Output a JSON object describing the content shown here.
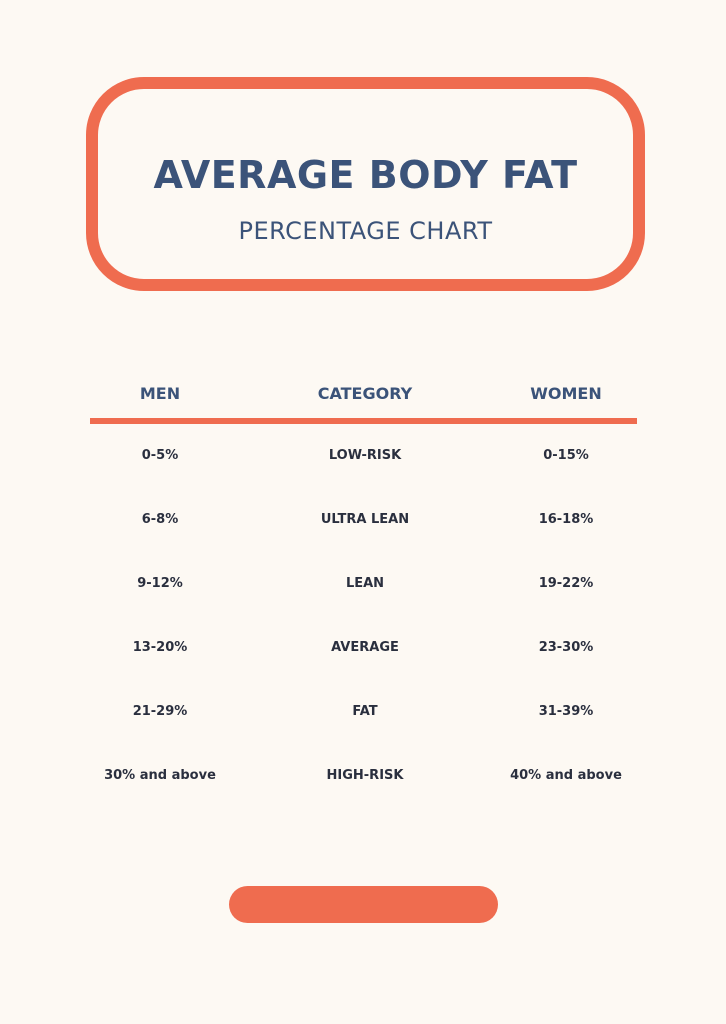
{
  "header": {
    "title": "AVERAGE BODY FAT",
    "subtitle": "PERCENTAGE CHART"
  },
  "table": {
    "columns": [
      "MEN",
      "CATEGORY",
      "WOMEN"
    ],
    "rows": [
      {
        "men": "0-5%",
        "category": "LOW-RISK",
        "women": "0-15%"
      },
      {
        "men": "6-8%",
        "category": "ULTRA LEAN",
        "women": "16-18%"
      },
      {
        "men": "9-12%",
        "category": "LEAN",
        "women": "19-22%"
      },
      {
        "men": "13-20%",
        "category": "AVERAGE",
        "women": "23-30%"
      },
      {
        "men": "21-29%",
        "category": "FAT",
        "women": "31-39%"
      },
      {
        "men": "30% and above",
        "category": "HIGH-RISK",
        "women": "40% and above"
      }
    ]
  },
  "colors": {
    "accent": "#ef6c4f",
    "heading": "#3b5379",
    "text": "#2a2f3e",
    "background": "#fdf9f3"
  }
}
